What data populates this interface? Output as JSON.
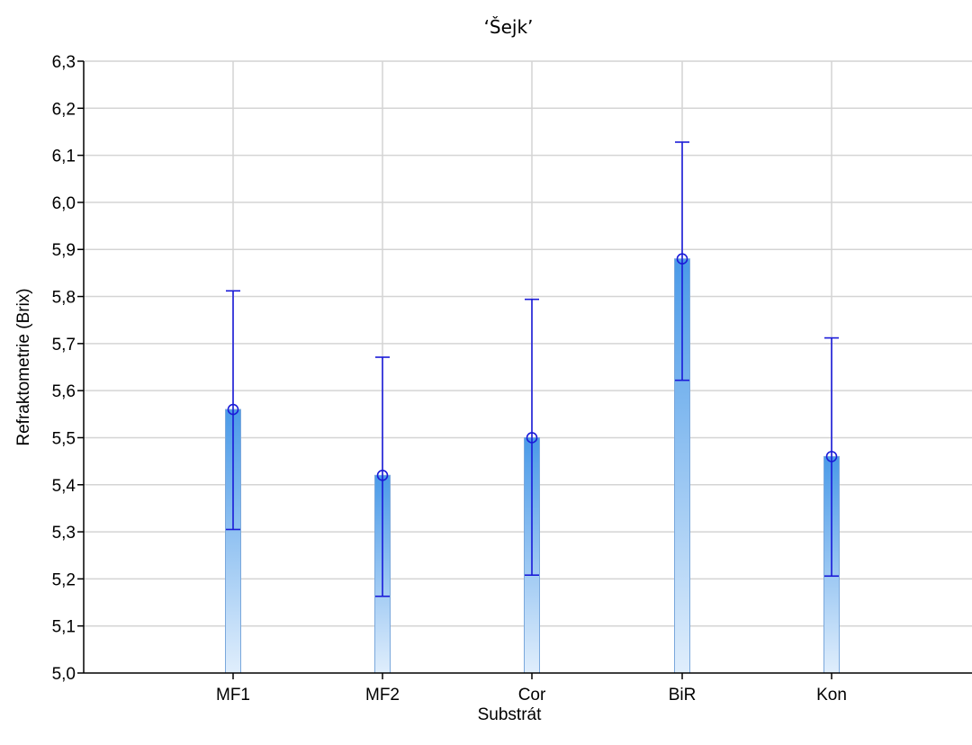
{
  "chart_data": {
    "type": "bar",
    "title": "‘Šejk’",
    "xlabel": "Substrát",
    "ylabel": "Refraktometrie (Brix)",
    "ylim": [
      5.0,
      6.3
    ],
    "yticks": [
      "5,0",
      "5,1",
      "5,2",
      "5,3",
      "5,4",
      "5,5",
      "5,6",
      "5,7",
      "5,8",
      "5,9",
      "6,0",
      "6,1",
      "6,2",
      "6,3"
    ],
    "yticks_values": [
      5.0,
      5.1,
      5.2,
      5.3,
      5.4,
      5.5,
      5.6,
      5.7,
      5.8,
      5.9,
      6.0,
      6.1,
      6.2,
      6.3
    ],
    "categories": [
      "MF1",
      "MF2",
      "Cor",
      "BiR",
      "Kon"
    ],
    "values": [
      5.56,
      5.42,
      5.5,
      5.88,
      5.46
    ],
    "error_low": [
      5.305,
      5.163,
      5.208,
      5.622,
      5.206
    ],
    "error_high": [
      5.812,
      5.671,
      5.794,
      6.128,
      5.712
    ],
    "grid": true,
    "colors": {
      "bar_top": "#4a9ae8",
      "bar_bottom": "#e0eefc",
      "bar_edge": "#7aa8dc",
      "error": "#1a1ad8",
      "grid": "#d4d4d4"
    }
  }
}
